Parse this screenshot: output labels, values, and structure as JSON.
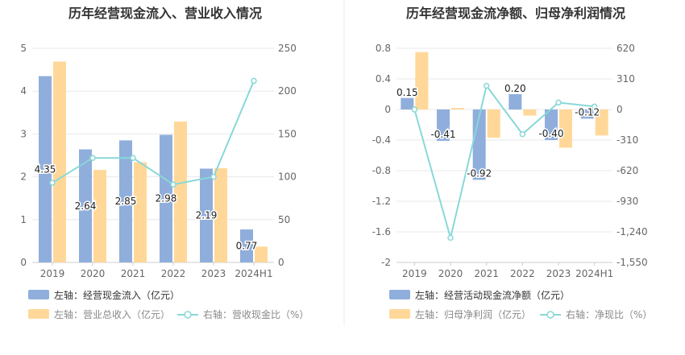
{
  "colors": {
    "bar_blue": "#8FAEDC",
    "bar_orange": "#FFD899",
    "line_teal": "#88D8D8",
    "grid": "#E8E8E8",
    "axis_text": "#666666",
    "title_text": "#333333",
    "divider": "#EEEEEE"
  },
  "chart_data": [
    {
      "type": "bar",
      "title": "历年经营现金流入、营业收入情况",
      "categories": [
        "2019",
        "2020",
        "2021",
        "2022",
        "2023",
        "2024H1"
      ],
      "left_axis": {
        "ylim": [
          0,
          5
        ],
        "ticks": [
          "0",
          "1",
          "2",
          "3",
          "4",
          "5"
        ]
      },
      "right_axis": {
        "ylim": [
          0,
          250
        ],
        "ticks": [
          "0",
          "50",
          "100",
          "150",
          "200",
          "250"
        ]
      },
      "series": [
        {
          "name": "左轴：经营现金流入（亿元）",
          "type": "bar",
          "axis": "left",
          "values": [
            4.35,
            2.64,
            2.85,
            2.98,
            2.19,
            0.77
          ],
          "labels": [
            "4.35",
            "2.64",
            "2.85",
            "2.98",
            "2.19",
            "0.77"
          ]
        },
        {
          "name": "左轴：营业总收入（亿元）",
          "type": "bar",
          "axis": "left",
          "values": [
            4.69,
            2.16,
            2.34,
            3.29,
            2.2,
            0.37
          ]
        },
        {
          "name": "右轴：营收现金比（%）",
          "type": "line",
          "axis": "right",
          "values": [
            93,
            122,
            122,
            91,
            100,
            212
          ]
        }
      ],
      "legend_placement": "bottom-left",
      "grid": true
    },
    {
      "type": "bar",
      "title": "历年经营现金流净额、归母净利润情况",
      "categories": [
        "2019",
        "2020",
        "2021",
        "2022",
        "2023",
        "2024H1"
      ],
      "left_axis": {
        "ylim": [
          -2,
          0.8
        ],
        "ticks": [
          "0.8",
          "0.4",
          "0",
          "-0.4",
          "-0.8",
          "-1.2",
          "-1.6",
          "-2"
        ]
      },
      "right_axis": {
        "ylim": [
          -1550,
          620
        ],
        "ticks": [
          "620",
          "310",
          "0",
          "-310",
          "-620",
          "-930",
          "-1,240",
          "-1,550"
        ]
      },
      "series": [
        {
          "name": "左轴：经营活动现金流净额（亿元）",
          "type": "bar",
          "axis": "left",
          "values": [
            0.15,
            -0.41,
            -0.92,
            0.2,
            -0.4,
            -0.12
          ],
          "labels": [
            "0.15",
            "-0.41",
            "-0.92",
            "0.20",
            "-0.40",
            "-0.12"
          ]
        },
        {
          "name": "左轴：归母净利润（亿元）",
          "type": "bar",
          "axis": "left",
          "values": [
            0.75,
            0.02,
            -0.37,
            -0.08,
            -0.5,
            -0.34
          ]
        },
        {
          "name": "右轴：净现比（%）",
          "type": "line",
          "axis": "right",
          "values": [
            0,
            -1300,
            240,
            -250,
            70,
            30
          ]
        }
      ],
      "legend_placement": "bottom-left",
      "grid": true
    }
  ]
}
